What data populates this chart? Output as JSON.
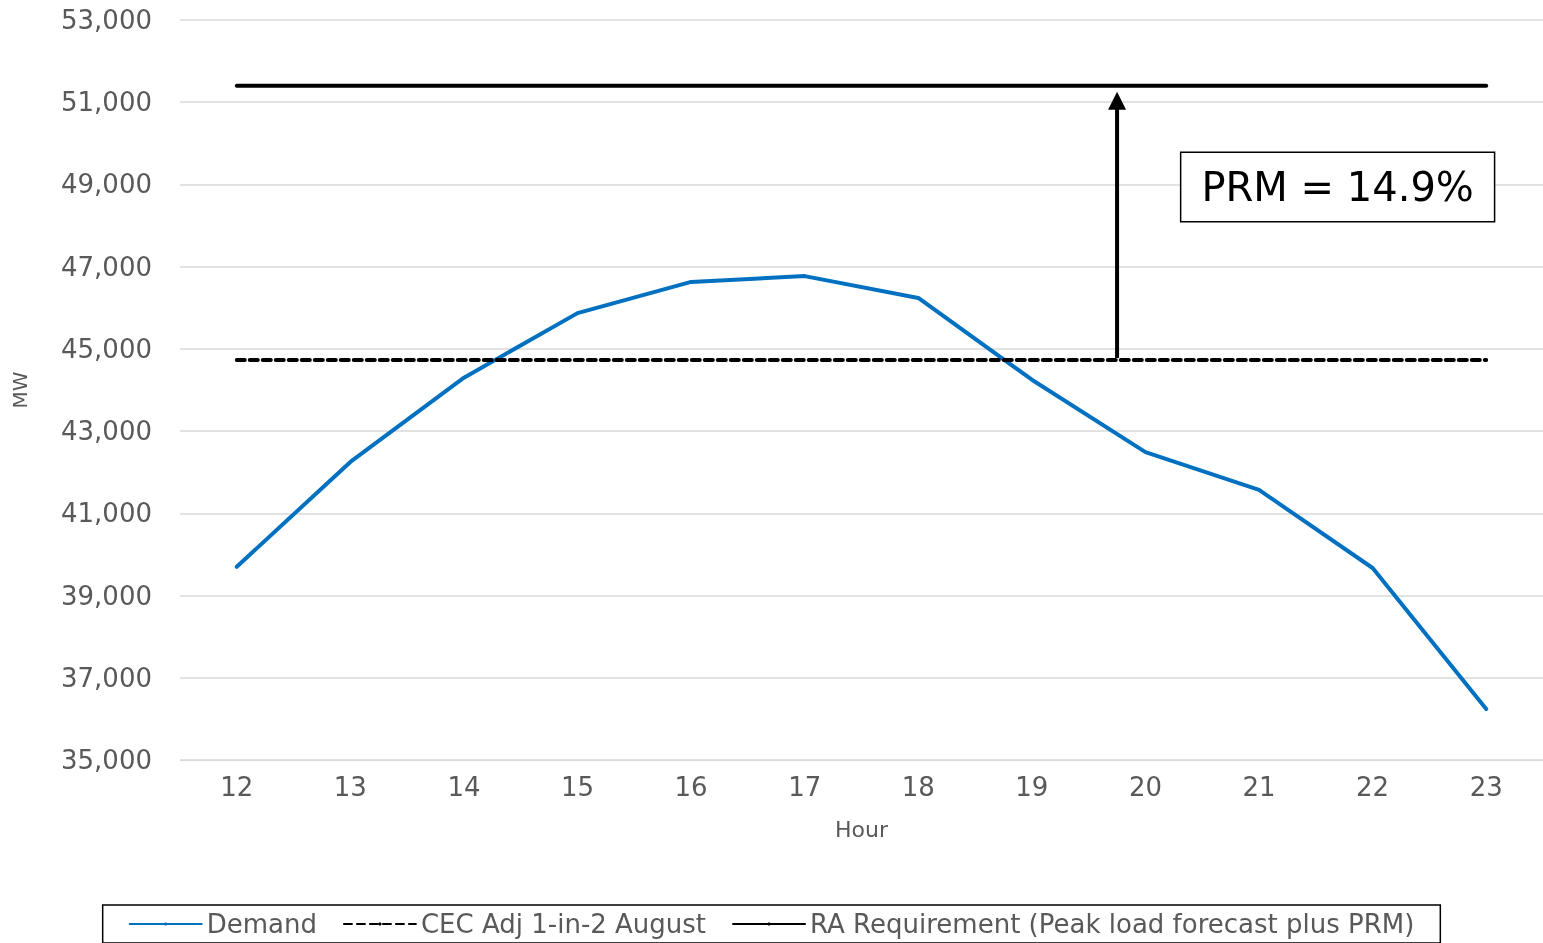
{
  "chart_data": {
    "type": "line",
    "xlabel": "Hour",
    "ylabel": "MW",
    "categories": [
      "12",
      "13",
      "14",
      "15",
      "16",
      "17",
      "18",
      "19",
      "20",
      "21",
      "22",
      "23"
    ],
    "series": [
      {
        "name": "Demand",
        "color": "#0070c0",
        "line_style": "solid",
        "values": [
          39700,
          42250,
          44300,
          45870,
          46630,
          46770,
          46240,
          44250,
          42490,
          41570,
          39670,
          36240
        ]
      },
      {
        "name": "CEC Adj 1-in-2 August",
        "color": "#000000",
        "line_style": "dashed",
        "values": [
          44730,
          44730,
          44730,
          44730,
          44730,
          44730,
          44730,
          44730,
          44730,
          44730,
          44730,
          44730
        ]
      },
      {
        "name": "RA Requirement (Peak load forecast plus PRM)",
        "color": "#000000",
        "line_style": "solid",
        "values": [
          51400,
          51400,
          51400,
          51400,
          51400,
          51400,
          51400,
          51400,
          51400,
          51400,
          51400,
          51400
        ]
      }
    ],
    "annotations": [
      "PRM = 14.9%"
    ],
    "ylim": [
      35000,
      53000
    ],
    "yticks": [
      {
        "value": 35000,
        "label": "35,000"
      },
      {
        "value": 37000,
        "label": "37,000"
      },
      {
        "value": 39000,
        "label": "39,000"
      },
      {
        "value": 41000,
        "label": "41,000"
      },
      {
        "value": 43000,
        "label": "43,000"
      },
      {
        "value": 45000,
        "label": "45,000"
      },
      {
        "value": 47000,
        "label": "47,000"
      },
      {
        "value": 49000,
        "label": "49,000"
      },
      {
        "value": 51000,
        "label": "51,000"
      },
      {
        "value": 53000,
        "label": "53,000"
      }
    ],
    "grid": "y",
    "legend": "bottom",
    "marker": "none"
  }
}
